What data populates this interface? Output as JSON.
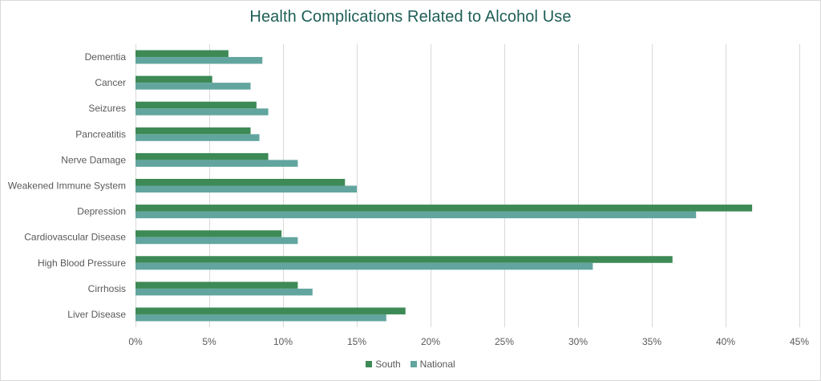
{
  "chart_data": {
    "type": "bar",
    "orientation": "horizontal",
    "title": "Health Complications Related to Alcohol Use",
    "xlabel": "",
    "ylabel": "",
    "xlim": [
      0,
      45
    ],
    "x_ticks": [
      0,
      5,
      10,
      15,
      20,
      25,
      30,
      35,
      40,
      45
    ],
    "x_tick_labels": [
      "0%",
      "5%",
      "10%",
      "15%",
      "20%",
      "25%",
      "30%",
      "35%",
      "40%",
      "45%"
    ],
    "grid": true,
    "legend_position": "bottom",
    "categories": [
      "Dementia",
      "Cancer",
      "Seizures",
      "Pancreatitis",
      "Nerve Damage",
      "Weakened Immune System",
      "Depression",
      "Cardiovascular Disease",
      "High Blood Pressure",
      "Cirrhosis",
      "Liver Disease"
    ],
    "series": [
      {
        "name": "South",
        "color": "#3d8a56",
        "values": [
          6.3,
          5.2,
          8.2,
          7.8,
          9.0,
          14.2,
          41.8,
          9.9,
          36.4,
          11.0,
          18.3
        ]
      },
      {
        "name": "National",
        "color": "#62a59f",
        "values": [
          8.6,
          7.8,
          9.0,
          8.4,
          11.0,
          15.0,
          38.0,
          11.0,
          31.0,
          12.0,
          17.0
        ]
      }
    ]
  }
}
